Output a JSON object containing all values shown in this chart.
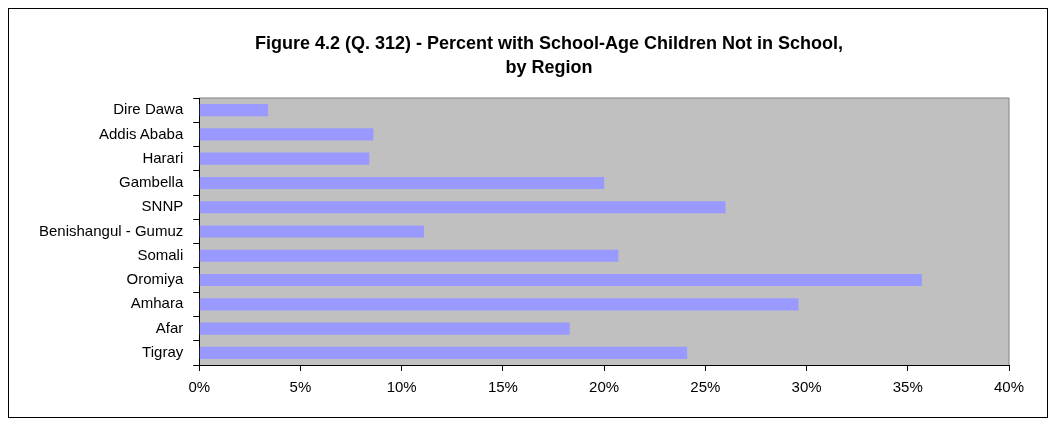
{
  "chart_data": {
    "type": "bar",
    "orientation": "horizontal",
    "title": "Figure 4.2  (Q. 312) - Percent with School-Age Children Not in School, by Region",
    "categories": [
      "Dire Dawa",
      "Addis Ababa",
      "Harari",
      "Gambella",
      "SNNP",
      "Benishangul - Gumuz",
      "Somali",
      "Oromiya",
      "Amhara",
      "Afar",
      "Tigray"
    ],
    "values": [
      3.4,
      8.6,
      8.4,
      20.0,
      26.0,
      11.1,
      20.7,
      35.7,
      29.6,
      18.3,
      24.1
    ],
    "color": "#9999ff",
    "xlim": [
      0,
      40
    ],
    "xticks": [
      {
        "value": 0,
        "label": "0%"
      },
      {
        "value": 5,
        "label": "5%"
      },
      {
        "value": 10,
        "label": "10%"
      },
      {
        "value": 15,
        "label": "15%"
      },
      {
        "value": 20,
        "label": "20%"
      },
      {
        "value": 25,
        "label": "25%"
      },
      {
        "value": 30,
        "label": "30%"
      },
      {
        "value": 35,
        "label": "35%"
      },
      {
        "value": 40,
        "label": "40%"
      }
    ],
    "grid": false,
    "legend": false
  }
}
